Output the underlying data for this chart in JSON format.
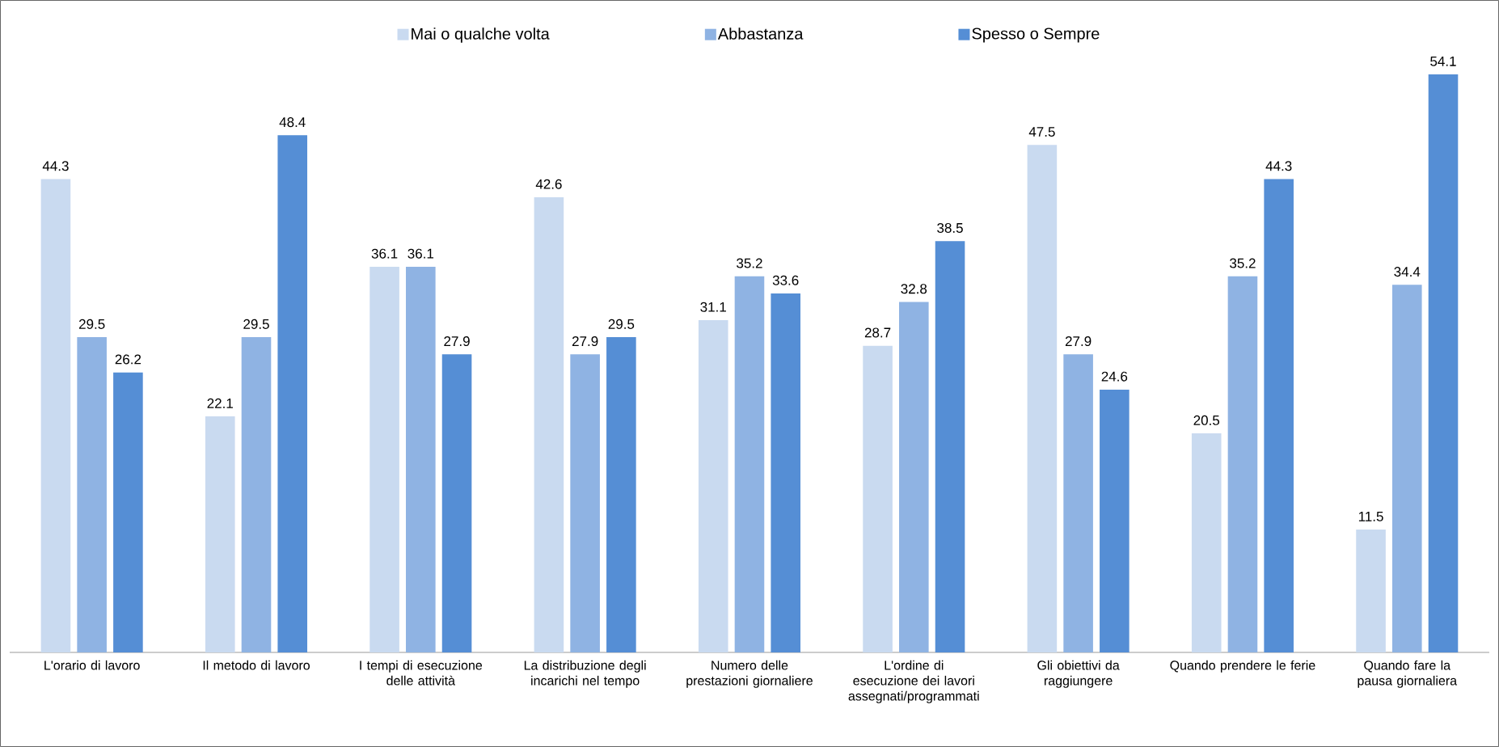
{
  "chart_data": {
    "type": "bar",
    "categories": [
      "L'orario di lavoro",
      "Il metodo di lavoro",
      "I tempi di esecuzione delle attività",
      "La distribuzione degli incarichi nel tempo",
      "Numero delle prestazioni giornaliere",
      "L'ordine di esecuzione dei lavori assegnati/programmati",
      "Gli obiettivi da raggiungere",
      "Quando prendere le ferie",
      "Quando fare la pausa giornaliera"
    ],
    "series": [
      {
        "name": "Mai o qualche volta",
        "color": "#c9daf0",
        "values": [
          44.3,
          22.1,
          36.1,
          42.6,
          31.1,
          28.7,
          47.5,
          20.5,
          11.5
        ]
      },
      {
        "name": "Abbastanza",
        "color": "#8fb3e3",
        "values": [
          29.5,
          29.5,
          36.1,
          27.9,
          35.2,
          32.8,
          27.9,
          35.2,
          34.4
        ]
      },
      {
        "name": "Spesso o Sempre",
        "color": "#558ed5",
        "values": [
          26.2,
          48.4,
          27.9,
          29.5,
          33.6,
          38.5,
          24.6,
          44.3,
          54.1
        ]
      }
    ],
    "data_labels": true,
    "legend": "top"
  }
}
